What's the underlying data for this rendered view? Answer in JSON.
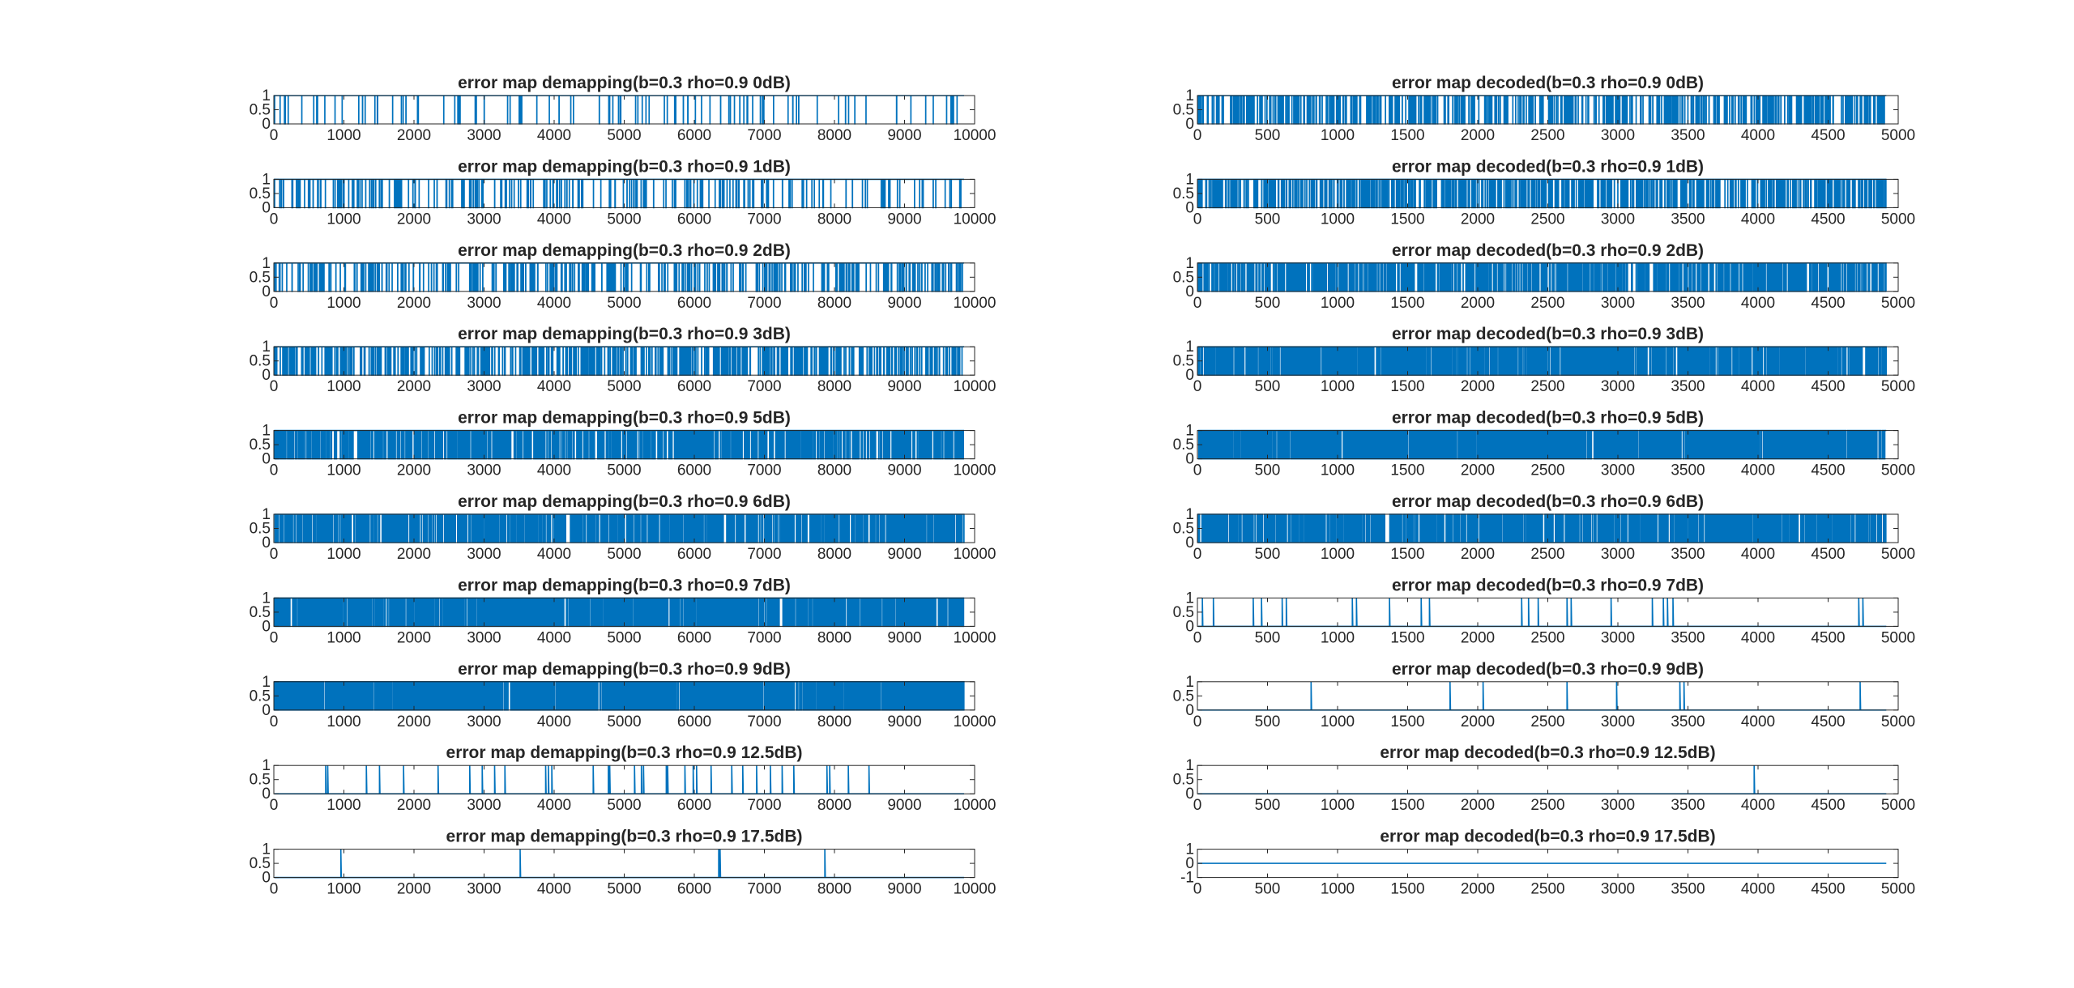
{
  "figure": {
    "background": "#ffffff",
    "line_color": "#0072BD",
    "axis_color": "#262626"
  },
  "chart_data": [
    {
      "type": "line",
      "title": "error map demapping(b=0.3 rho=0.9 0dB)",
      "xlim": [
        0,
        10000
      ],
      "ylim": [
        0,
        1
      ],
      "xticks": [
        0,
        1000,
        2000,
        3000,
        4000,
        5000,
        6000,
        7000,
        8000,
        9000,
        10000
      ],
      "yticks": [
        0,
        0.5,
        1
      ],
      "density": 0.97,
      "x_events": []
    },
    {
      "type": "line",
      "title": "error map demapping(b=0.3 rho=0.9 1dB)",
      "xlim": [
        0,
        10000
      ],
      "ylim": [
        0,
        1
      ],
      "xticks": [
        0,
        1000,
        2000,
        3000,
        4000,
        5000,
        6000,
        7000,
        8000,
        9000,
        10000
      ],
      "yticks": [
        0,
        0.5,
        1
      ],
      "density": 0.93,
      "x_events": []
    },
    {
      "type": "line",
      "title": "error map demapping(b=0.3 rho=0.9 2dB)",
      "xlim": [
        0,
        10000
      ],
      "ylim": [
        0,
        1
      ],
      "xticks": [
        0,
        1000,
        2000,
        3000,
        4000,
        5000,
        6000,
        7000,
        8000,
        9000,
        10000
      ],
      "yticks": [
        0,
        0.5,
        1
      ],
      "density": 0.88,
      "x_events": []
    },
    {
      "type": "line",
      "title": "error map demapping(b=0.3 rho=0.9 3dB)",
      "xlim": [
        0,
        10000
      ],
      "ylim": [
        0,
        1
      ],
      "xticks": [
        0,
        1000,
        2000,
        3000,
        4000,
        5000,
        6000,
        7000,
        8000,
        9000,
        10000
      ],
      "yticks": [
        0,
        0.5,
        1
      ],
      "density": 0.78,
      "x_events": []
    },
    {
      "type": "line",
      "title": "error map demapping(b=0.3 rho=0.9 5dB)",
      "xlim": [
        0,
        10000
      ],
      "ylim": [
        0,
        1
      ],
      "xticks": [
        0,
        1000,
        2000,
        3000,
        4000,
        5000,
        6000,
        7000,
        8000,
        9000,
        10000
      ],
      "yticks": [
        0,
        0.5,
        1
      ],
      "density": 0.6,
      "x_events": []
    },
    {
      "type": "line",
      "title": "error map demapping(b=0.3 rho=0.9 6dB)",
      "xlim": [
        0,
        10000
      ],
      "ylim": [
        0,
        1
      ],
      "xticks": [
        0,
        1000,
        2000,
        3000,
        4000,
        5000,
        6000,
        7000,
        8000,
        9000,
        10000
      ],
      "yticks": [
        0,
        0.5,
        1
      ],
      "density": 0.55,
      "x_events": []
    },
    {
      "type": "line",
      "title": "error map demapping(b=0.3 rho=0.9 7dB)",
      "xlim": [
        0,
        10000
      ],
      "ylim": [
        0,
        1
      ],
      "xticks": [
        0,
        1000,
        2000,
        3000,
        4000,
        5000,
        6000,
        7000,
        8000,
        9000,
        10000
      ],
      "yticks": [
        0,
        0.5,
        1
      ],
      "density": 0.42,
      "x_events": []
    },
    {
      "type": "line",
      "title": "error map demapping(b=0.3 rho=0.9 9dB)",
      "xlim": [
        0,
        10000
      ],
      "ylim": [
        0,
        1
      ],
      "xticks": [
        0,
        1000,
        2000,
        3000,
        4000,
        5000,
        6000,
        7000,
        8000,
        9000,
        10000
      ],
      "yticks": [
        0,
        0.5,
        1
      ],
      "density": 0.3,
      "x_events": []
    },
    {
      "type": "line",
      "title": "error map demapping(b=0.3 rho=0.9 12.5dB)",
      "xlim": [
        0,
        10000
      ],
      "ylim": [
        0,
        1
      ],
      "xticks": [
        0,
        1000,
        2000,
        3000,
        4000,
        5000,
        6000,
        7000,
        8000,
        9000,
        10000
      ],
      "yticks": [
        0,
        0.5,
        1
      ],
      "density": 0,
      "x_events": [
        740,
        770,
        1330,
        1520,
        1870,
        2370,
        2830,
        3010,
        3190,
        3340,
        3930,
        3970,
        4020,
        4620,
        4840,
        4860,
        5220,
        5320,
        5350,
        5680,
        5700,
        5950,
        6070,
        6120,
        6330,
        6630,
        6790,
        6990,
        7190,
        7360,
        7530,
        8010,
        8050,
        8320,
        8620
      ]
    },
    {
      "type": "line",
      "title": "error map demapping(b=0.3 rho=0.9 17.5dB)",
      "xlim": [
        0,
        10000
      ],
      "ylim": [
        0,
        1
      ],
      "xticks": [
        0,
        1000,
        2000,
        3000,
        4000,
        5000,
        6000,
        7000,
        8000,
        9000,
        10000
      ],
      "yticks": [
        0,
        0.5,
        1
      ],
      "density": 0,
      "x_events": [
        960,
        3560,
        6440,
        6460,
        7980
      ]
    },
    {
      "type": "line",
      "title": "error map decoded(b=0.3 rho=0.9 0dB)",
      "xlim": [
        0,
        5000
      ],
      "ylim": [
        0,
        1
      ],
      "xticks": [
        0,
        500,
        1000,
        1500,
        2000,
        2500,
        3000,
        3500,
        4000,
        4500,
        5000
      ],
      "yticks": [
        0,
        0.5,
        1
      ],
      "density": 0.8,
      "x_events": []
    },
    {
      "type": "line",
      "title": "error map decoded(b=0.3 rho=0.9 1dB)",
      "xlim": [
        0,
        5000
      ],
      "ylim": [
        0,
        1
      ],
      "xticks": [
        0,
        500,
        1000,
        1500,
        2000,
        2500,
        3000,
        3500,
        4000,
        4500,
        5000
      ],
      "yticks": [
        0,
        0.5,
        1
      ],
      "density": 0.74,
      "x_events": []
    },
    {
      "type": "line",
      "title": "error map decoded(b=0.3 rho=0.9 2dB)",
      "xlim": [
        0,
        5000
      ],
      "ylim": [
        0,
        1
      ],
      "xticks": [
        0,
        500,
        1000,
        1500,
        2000,
        2500,
        3000,
        3500,
        4000,
        4500,
        5000
      ],
      "yticks": [
        0,
        0.5,
        1
      ],
      "density": 0.62,
      "x_events": []
    },
    {
      "type": "line",
      "title": "error map decoded(b=0.3 rho=0.9 3dB)",
      "xlim": [
        0,
        5000
      ],
      "ylim": [
        0,
        1
      ],
      "xticks": [
        0,
        500,
        1000,
        1500,
        2000,
        2500,
        3000,
        3500,
        4000,
        4500,
        5000
      ],
      "yticks": [
        0,
        0.5,
        1
      ],
      "density": 0.48,
      "x_events": []
    },
    {
      "type": "line",
      "title": "error map decoded(b=0.3 rho=0.9 5dB)",
      "xlim": [
        0,
        5000
      ],
      "ylim": [
        0,
        1
      ],
      "xticks": [
        0,
        500,
        1000,
        1500,
        2000,
        2500,
        3000,
        3500,
        4000,
        4500,
        5000
      ],
      "yticks": [
        0,
        0.5,
        1
      ],
      "density": 0.3,
      "x_events": []
    },
    {
      "type": "line",
      "title": "error map decoded(b=0.3 rho=0.9 6dB)",
      "xlim": [
        0,
        5000
      ],
      "ylim": [
        0,
        1
      ],
      "xticks": [
        0,
        500,
        1000,
        1500,
        2000,
        2500,
        3000,
        3500,
        4000,
        4500,
        5000
      ],
      "yticks": [
        0,
        0.5,
        1
      ],
      "density": 0.18,
      "x_events": []
    },
    {
      "type": "line",
      "title": "error map decoded(b=0.3 rho=0.9 7dB)",
      "xlim": [
        0,
        5000
      ],
      "ylim": [
        0,
        1
      ],
      "xticks": [
        0,
        500,
        1000,
        1500,
        2000,
        2500,
        3000,
        3500,
        4000,
        4500,
        5000
      ],
      "yticks": [
        0,
        0.5,
        1
      ],
      "density": 0,
      "x_events": [
        30,
        110,
        400,
        460,
        610,
        640,
        1120,
        1150,
        1390,
        1620,
        1680,
        2350,
        2400,
        2470,
        2680,
        2710,
        3000,
        3300,
        3380,
        3410,
        3450,
        4800,
        4830
      ]
    },
    {
      "type": "line",
      "title": "error map decoded(b=0.3 rho=0.9 9dB)",
      "xlim": [
        0,
        5000
      ],
      "ylim": [
        0,
        1
      ],
      "xticks": [
        0,
        500,
        1000,
        1500,
        2000,
        2500,
        3000,
        3500,
        4000,
        4500,
        5000
      ],
      "yticks": [
        0,
        0.5,
        1
      ],
      "density": 0,
      "x_events": [
        820,
        1830,
        2070,
        2680,
        3040,
        3500,
        3530,
        4810
      ]
    },
    {
      "type": "line",
      "title": "error map decoded(b=0.3 rho=0.9 12.5dB)",
      "xlim": [
        0,
        5000
      ],
      "ylim": [
        0,
        1
      ],
      "xticks": [
        0,
        500,
        1000,
        1500,
        2000,
        2500,
        3000,
        3500,
        4000,
        4500,
        5000
      ],
      "yticks": [
        0,
        0.5,
        1
      ],
      "density": 0,
      "x_events": [
        4040
      ]
    },
    {
      "type": "line",
      "title": "error map decoded(b=0.3 rho=0.9 17.5dB)",
      "xlim": [
        0,
        5000
      ],
      "ylim": [
        -1,
        1
      ],
      "xticks": [
        0,
        500,
        1000,
        1500,
        2000,
        2500,
        3000,
        3500,
        4000,
        4500,
        5000
      ],
      "yticks": [
        -1,
        0,
        1
      ],
      "density": 0,
      "x_events": []
    }
  ]
}
